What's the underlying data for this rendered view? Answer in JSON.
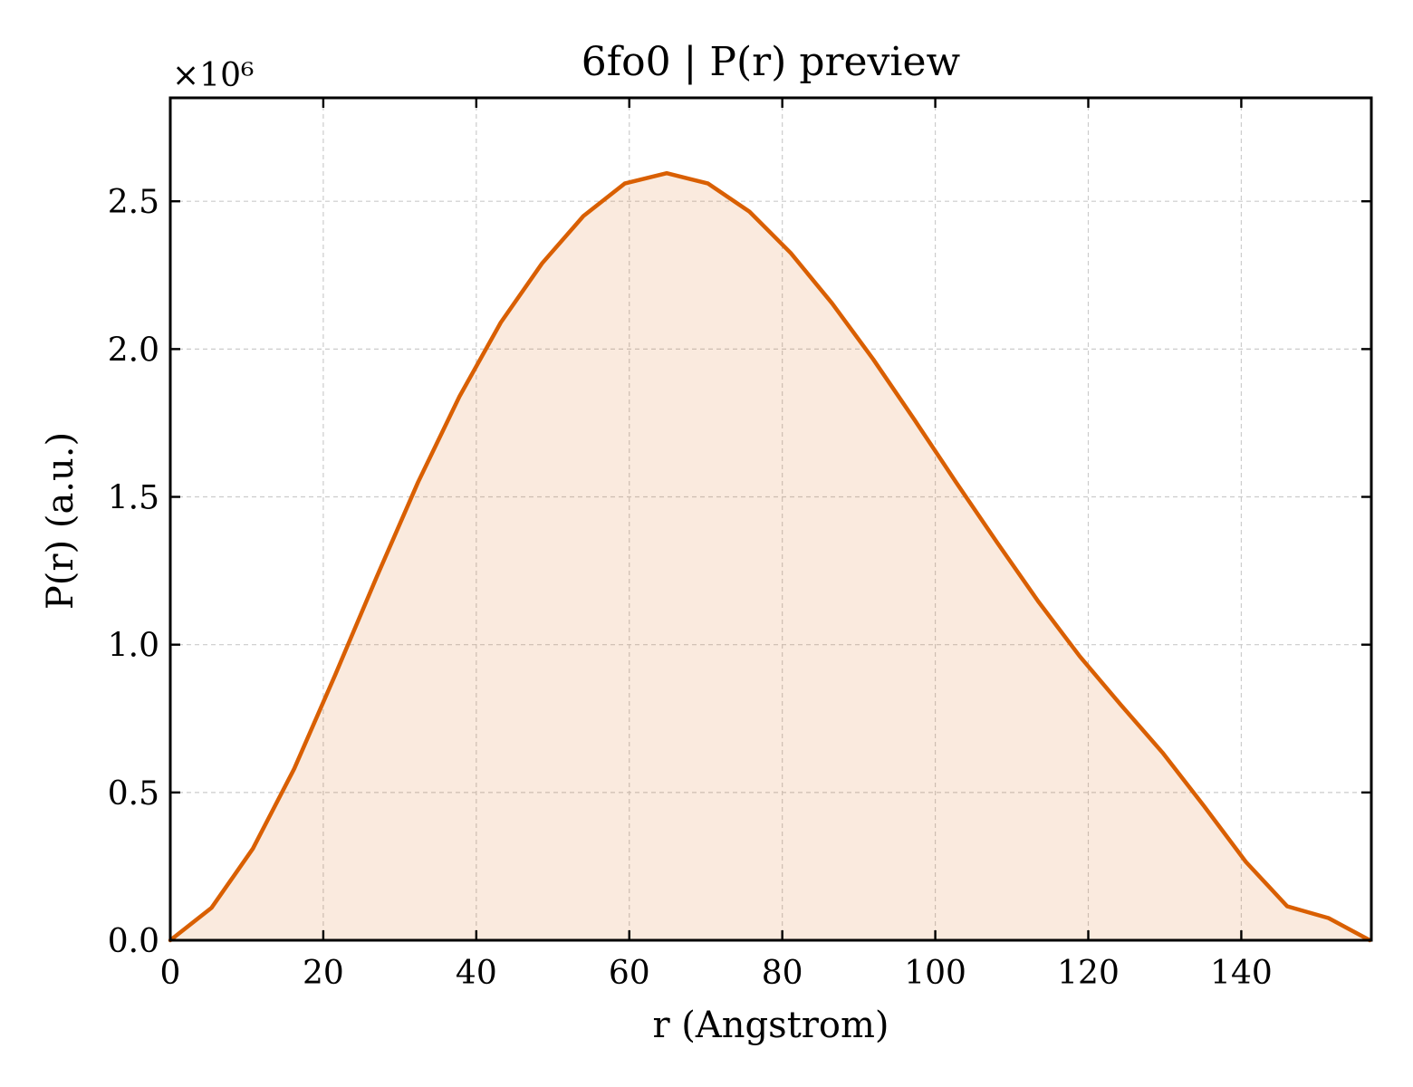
{
  "chart_data": {
    "type": "area",
    "title": "6fo0 | P(r) preview",
    "xlabel": "r (Angstrom)",
    "ylabel": "P(r) (a.u.)",
    "y_multiplier_label": "×10⁶",
    "y_multiplier": 1000000,
    "xlim": [
      0,
      157
    ],
    "ylim": [
      0,
      2.85
    ],
    "xticks": [
      0,
      20,
      40,
      60,
      80,
      100,
      120,
      140
    ],
    "yticks": [
      0.0,
      0.5,
      1.0,
      1.5,
      2.0,
      2.5
    ],
    "xtick_labels": [
      "0",
      "20",
      "40",
      "60",
      "80",
      "100",
      "120",
      "140"
    ],
    "ytick_labels": [
      "0.0",
      "0.5",
      "1.0",
      "1.5",
      "2.0",
      "2.5"
    ],
    "grid": true,
    "legend": "none",
    "series": [
      {
        "color": "#d95f02",
        "fill_color": "#d95f02",
        "fill_opacity": 0.13,
        "x": [
          0,
          5.4,
          10.8,
          16.2,
          21.6,
          27.0,
          32.4,
          37.8,
          43.2,
          48.6,
          54.0,
          59.4,
          64.9,
          70.3,
          75.7,
          81.1,
          86.5,
          91.9,
          97.3,
          102.7,
          108.1,
          113.5,
          118.9,
          124.3,
          129.7,
          135.1,
          140.6,
          146.0,
          151.4,
          156.8
        ],
        "y": [
          0.0,
          0.11,
          0.31,
          0.58,
          0.9,
          1.23,
          1.55,
          1.84,
          2.09,
          2.29,
          2.45,
          2.56,
          2.595,
          2.56,
          2.465,
          2.325,
          2.155,
          1.965,
          1.76,
          1.55,
          1.345,
          1.145,
          0.96,
          0.795,
          0.635,
          0.455,
          0.265,
          0.115,
          0.075,
          0.0
        ]
      }
    ]
  }
}
